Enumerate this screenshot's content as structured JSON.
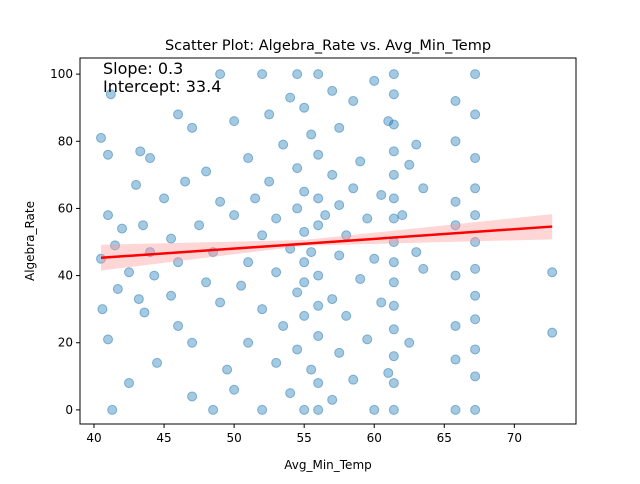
{
  "chart_data": {
    "type": "scatter",
    "title": "Scatter Plot: Algebra_Rate vs. Avg_Min_Temp",
    "x_label": "Avg_Min_Temp",
    "y_label": "Algebra_Rate",
    "annotations": [
      "Slope: 0.3",
      "Intercept: 33.4"
    ],
    "color": "#1f77b4",
    "line_color": "#ff0000",
    "band_color": "#ff9999",
    "xlim": [
      39.0,
      74.4
    ],
    "ylim": [
      -4.2,
      104.8
    ],
    "xticks": [
      40,
      45,
      50,
      55,
      60,
      65,
      70
    ],
    "yticks": [
      0,
      20,
      40,
      60,
      80,
      100
    ],
    "x": [
      40.5,
      40.5,
      40.6,
      41,
      41,
      41,
      41.2,
      41.3,
      41.5,
      41.7,
      42,
      42.5,
      42.5,
      43,
      43.2,
      43.3,
      43.5,
      43.6,
      44,
      44,
      44.3,
      44.5,
      45,
      45.5,
      45.5,
      46,
      46,
      46,
      46.5,
      47,
      47,
      47,
      47.5,
      48,
      48,
      48.5,
      48.5,
      49,
      49,
      49,
      49.5,
      50,
      50,
      50,
      50.5,
      51,
      51,
      51,
      51.5,
      52,
      52,
      52,
      52,
      52.5,
      52.5,
      53,
      53,
      53,
      53.5,
      53.5,
      54,
      54,
      54,
      54.5,
      54.5,
      54.5,
      54.5,
      54.5,
      55,
      55,
      55,
      55,
      55,
      55,
      55,
      55.5,
      55.5,
      55.5,
      56,
      56,
      56,
      56,
      56,
      56,
      56,
      56,
      56,
      56.5,
      57,
      57,
      57,
      57,
      57.5,
      57.5,
      57.5,
      57.5,
      58,
      58,
      58.5,
      58.5,
      58.5,
      59,
      59,
      59.5,
      59.5,
      60,
      60,
      60,
      60.5,
      60.5,
      61,
      61,
      61.4,
      61.4,
      61.4,
      61.4,
      61.4,
      61.4,
      61.4,
      61.4,
      61.4,
      61.4,
      61.4,
      61.4,
      61.4,
      61.4,
      61.4,
      62,
      62.5,
      62.5,
      63,
      63,
      63.5,
      63.5,
      65.8,
      65.8,
      65.8,
      65.8,
      65.8,
      65.8,
      65.8,
      65.8,
      67.2,
      67.2,
      67.2,
      67.2,
      67.2,
      67.2,
      67.2,
      67.2,
      67.2,
      67.2,
      67.2,
      67.2,
      72.7,
      72.7
    ],
    "y": [
      45,
      81,
      30,
      21,
      58,
      76,
      94,
      0,
      49,
      36,
      54,
      8,
      41,
      67,
      33,
      77,
      55,
      29,
      75,
      47,
      40,
      14,
      63,
      34,
      51,
      88,
      44,
      25,
      68,
      84,
      20,
      4,
      55,
      71,
      38,
      0,
      47,
      100,
      62,
      32,
      12,
      86,
      58,
      6,
      37,
      75,
      44,
      20,
      63,
      100,
      52,
      0,
      30,
      88,
      68,
      41,
      14,
      57,
      79,
      25,
      93,
      48,
      5,
      100,
      72,
      60,
      35,
      18,
      90,
      65,
      53,
      44,
      38,
      28,
      0,
      82,
      47,
      12,
      100,
      76,
      63,
      55,
      40,
      31,
      22,
      8,
      0,
      58,
      95,
      70,
      33,
      3,
      84,
      61,
      46,
      17,
      52,
      28,
      92,
      66,
      9,
      39,
      74,
      57,
      21,
      98,
      45,
      0,
      64,
      32,
      86,
      11,
      100,
      94,
      85,
      77,
      70,
      63,
      57,
      50,
      44,
      38,
      31,
      24,
      16,
      8,
      0,
      58,
      73,
      20,
      47,
      79,
      66,
      42,
      92,
      80,
      62,
      55,
      40,
      25,
      15,
      0,
      100,
      88,
      75,
      66,
      58,
      50,
      42,
      34,
      27,
      18,
      10,
      0,
      41,
      23
    ],
    "regression": {
      "x": [
        40.5,
        72.7
      ],
      "y": [
        45.3,
        54.6
      ]
    },
    "band": {
      "x": [
        40.5,
        55,
        72.7
      ],
      "lower": [
        41.5,
        48.9,
        50.8
      ],
      "upper": [
        49.2,
        50.6,
        58.3
      ]
    }
  }
}
